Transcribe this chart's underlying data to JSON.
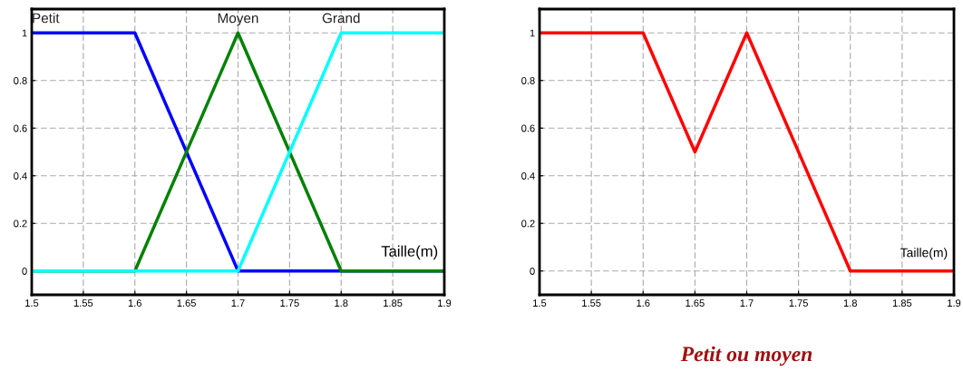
{
  "chart_data": [
    {
      "type": "line",
      "x": [
        1.5,
        1.6,
        1.7,
        1.8,
        1.9
      ],
      "xlabel": "Taille(m)",
      "series": [
        {
          "name": "Petit",
          "color": "#0000ff",
          "values": [
            1,
            1,
            0,
            0,
            0
          ]
        },
        {
          "name": "Moyen",
          "color": "#008000",
          "values": [
            0,
            0,
            1,
            0,
            0
          ]
        },
        {
          "name": "Grand",
          "color": "#00ffff",
          "values": [
            0,
            0,
            0,
            1,
            1
          ]
        }
      ],
      "xlim": [
        1.5,
        1.9
      ],
      "xticks": [
        1.5,
        1.55,
        1.6,
        1.65,
        1.7,
        1.75,
        1.8,
        1.85,
        1.9
      ],
      "ylim": [
        -0.1,
        1.1
      ],
      "yticks": [
        0,
        0.2,
        0.4,
        0.6,
        0.8,
        1
      ],
      "grid": true,
      "line_style": "solid",
      "marker": "none"
    },
    {
      "type": "line",
      "x": [
        1.5,
        1.6,
        1.65,
        1.7,
        1.8,
        1.9
      ],
      "xlabel": "Taille(m)",
      "series": [
        {
          "color": "#ff0000",
          "values": [
            1,
            1,
            0.5,
            1,
            0,
            0
          ]
        }
      ],
      "xlim": [
        1.5,
        1.9
      ],
      "xticks": [
        1.5,
        1.55,
        1.6,
        1.65,
        1.7,
        1.75,
        1.8,
        1.85,
        1.9
      ],
      "ylim": [
        -0.1,
        1.1
      ],
      "yticks": [
        0,
        0.2,
        0.4,
        0.6,
        0.8,
        1
      ],
      "grid": true,
      "line_style": "solid",
      "marker": "none",
      "annotations": [
        "Petit ou moyen"
      ]
    }
  ]
}
